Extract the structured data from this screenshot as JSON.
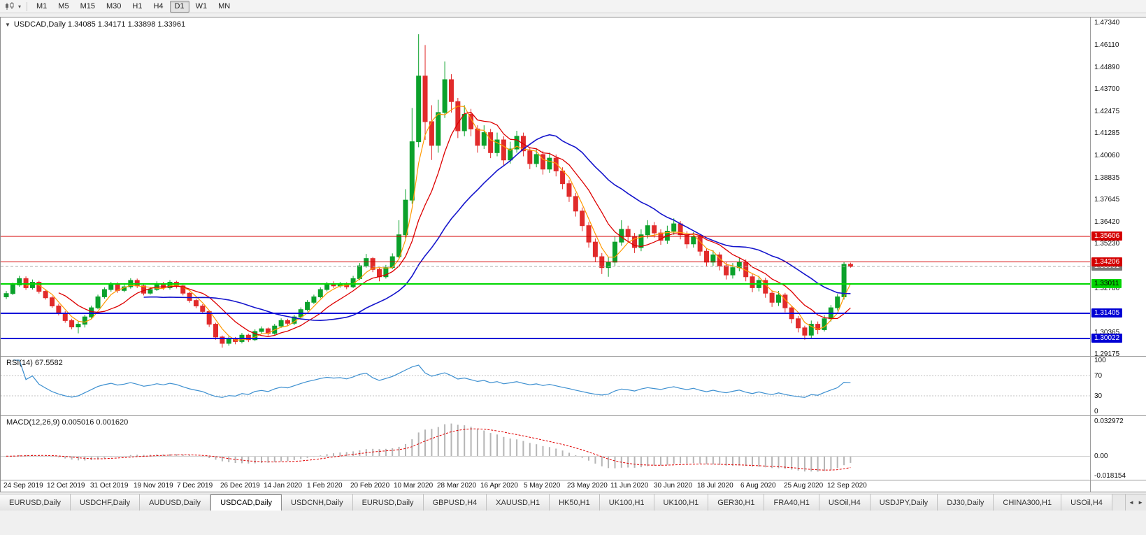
{
  "icons": {
    "collapse": "▼",
    "caret": "▾",
    "tab_scroll_left": "◄",
    "tab_scroll_right": "►"
  },
  "toolbar": {
    "timeframes": [
      "M1",
      "M5",
      "M15",
      "M30",
      "H1",
      "H4",
      "D1",
      "W1",
      "MN"
    ],
    "active_timeframe": "D1"
  },
  "chart": {
    "title": "USDCAD,Daily 1.34085 1.34171 1.33898 1.33961",
    "symbol": "USDCAD",
    "period": "Daily",
    "ohlc": {
      "open": "1.34085",
      "high": "1.34171",
      "low": "1.33898",
      "close": "1.33961"
    }
  },
  "price_axis": {
    "labels": [
      "1.47340",
      "1.46110",
      "1.44890",
      "1.43700",
      "1.42475",
      "1.41285",
      "1.40060",
      "1.38835",
      "1.37645",
      "1.36420",
      "1.35230",
      "1.32780",
      "1.30365",
      "1.29175"
    ],
    "badges": [
      {
        "text": "1.33961",
        "value": 1.33961,
        "bg": "#7a7a7a",
        "fg": "#ffffff"
      },
      {
        "text": "1.35606",
        "value": 1.35606,
        "bg": "#d40000",
        "fg": "#ffffff"
      },
      {
        "text": "1.34206",
        "value": 1.34206,
        "bg": "#d40000",
        "fg": "#ffffff"
      },
      {
        "text": "1.33011",
        "value": 1.33011,
        "bg": "#00d400",
        "fg": "#000000"
      },
      {
        "text": "1.31405",
        "value": 1.31405,
        "bg": "#0000d4",
        "fg": "#ffffff"
      },
      {
        "text": "1.30022",
        "value": 1.30022,
        "bg": "#0000d4",
        "fg": "#ffffff"
      }
    ]
  },
  "levels": [
    {
      "price": 1.35606,
      "color": "#d40000",
      "width": 1
    },
    {
      "price": 1.34206,
      "color": "#d40000",
      "width": 1
    },
    {
      "price": 1.33011,
      "color": "#00d800",
      "width": 2
    },
    {
      "price": 1.31405,
      "color": "#0000d8",
      "width": 2
    },
    {
      "price": 1.30022,
      "color": "#0000d8",
      "width": 2
    }
  ],
  "current_price": {
    "value": 1.33961,
    "line_color": "#a8a8a8"
  },
  "rsi_panel": {
    "label": "RSI(14) 67.5582",
    "current": 67.5582,
    "axis_labels": [
      {
        "text": "100",
        "value": 100
      },
      {
        "text": "70",
        "value": 70
      },
      {
        "text": "30",
        "value": 30
      },
      {
        "text": "0",
        "value": 0
      }
    ],
    "guide_levels": [
      70,
      30
    ],
    "line_color": "#3c8fd0"
  },
  "macd_panel": {
    "label": "MACD(12,26,9) 0.005016 0.001620",
    "axis_labels": [
      {
        "text": "0.032972",
        "value": 0.032972
      },
      {
        "text": "0.00",
        "value": 0
      },
      {
        "text": "-0.018154",
        "value": -0.018154
      }
    ],
    "histogram_color": "#b5b5b5",
    "signal_color": "#e00000"
  },
  "date_axis": {
    "labels": [
      "24 Sep 2019",
      "12 Oct 2019",
      "31 Oct 2019",
      "19 Nov 2019",
      "7 Dec 2019",
      "26 Dec 2019",
      "14 Jan 2020",
      "1 Feb 2020",
      "20 Feb 2020",
      "10 Mar 2020",
      "28 Mar 2020",
      "16 Apr 2020",
      "5 May 2020",
      "23 May 2020",
      "11 Jun 2020",
      "30 Jun 2020",
      "18 Jul 2020",
      "6 Aug 2020",
      "25 Aug 2020",
      "12 Sep 2020"
    ]
  },
  "tabbar": {
    "active_index": 3,
    "tabs": [
      "EURUSD,Daily",
      "USDCHF,Daily",
      "AUDUSD,Daily",
      "USDCAD,Daily",
      "USDCNH,Daily",
      "EURUSD,Daily",
      "GBPUSD,H4",
      "XAUUSD,H1",
      "HK50,H1",
      "UK100,H1",
      "UK100,H1",
      "GER30,H1",
      "FRA40,H1",
      "USOil,H4",
      "USDJPY,Daily",
      "DJ30,Daily",
      "CHINA300,H1",
      "USOil,H4"
    ]
  },
  "chart_data": {
    "type": "candlestick",
    "symbol": "USDCAD",
    "timeframe": "Daily",
    "x_range": [
      "24 Sep 2019",
      "22 Sep 2020"
    ],
    "price_range": [
      1.2906,
      1.4761
    ],
    "last_ohlc": [
      1.34085,
      1.34171,
      1.33898,
      1.33961
    ],
    "up_color": "#0ba12b",
    "down_color": "#e12b2b",
    "ma_colors": [
      "#ff9900",
      "#dd0000",
      "#1515cc"
    ],
    "indicators": {
      "rsi": {
        "period": 14,
        "current": 67.5582
      },
      "macd": {
        "fast": 12,
        "slow": 26,
        "signal": 9,
        "current": [
          0.005016,
          0.00162
        ]
      }
    },
    "candles": [
      [
        1.323,
        1.3262,
        1.3218,
        1.3248
      ],
      [
        1.3248,
        1.3308,
        1.324,
        1.3295
      ],
      [
        1.3295,
        1.3345,
        1.3285,
        1.333
      ],
      [
        1.333,
        1.3342,
        1.3268,
        1.328
      ],
      [
        1.328,
        1.3325,
        1.327,
        1.331
      ],
      [
        1.331,
        1.3318,
        1.3248,
        1.326
      ],
      [
        1.326,
        1.3272,
        1.3215,
        1.3225
      ],
      [
        1.3225,
        1.3235,
        1.317,
        1.318
      ],
      [
        1.318,
        1.3192,
        1.3128,
        1.314
      ],
      [
        1.314,
        1.3152,
        1.3088,
        1.31
      ],
      [
        1.31,
        1.311,
        1.3052,
        1.3065
      ],
      [
        1.3065,
        1.3095,
        1.303,
        1.308
      ],
      [
        1.308,
        1.3132,
        1.3062,
        1.312
      ],
      [
        1.312,
        1.3182,
        1.311,
        1.317
      ],
      [
        1.317,
        1.3242,
        1.3162,
        1.323
      ],
      [
        1.323,
        1.3282,
        1.322,
        1.327
      ],
      [
        1.327,
        1.3312,
        1.3258,
        1.33
      ],
      [
        1.33,
        1.331,
        1.3252,
        1.3265
      ],
      [
        1.3265,
        1.3298,
        1.3255,
        1.3285
      ],
      [
        1.3285,
        1.3332,
        1.3275,
        1.332
      ],
      [
        1.332,
        1.333,
        1.3278,
        1.329
      ],
      [
        1.329,
        1.3298,
        1.3238,
        1.325
      ],
      [
        1.325,
        1.3285,
        1.3242,
        1.327
      ],
      [
        1.327,
        1.3315,
        1.3262,
        1.33
      ],
      [
        1.33,
        1.3312,
        1.3268,
        1.328
      ],
      [
        1.328,
        1.3322,
        1.327,
        1.331
      ],
      [
        1.331,
        1.3318,
        1.3276,
        1.329
      ],
      [
        1.329,
        1.3296,
        1.3238,
        1.325
      ],
      [
        1.325,
        1.3258,
        1.3198,
        1.321
      ],
      [
        1.321,
        1.322,
        1.3168,
        1.318
      ],
      [
        1.318,
        1.319,
        1.3138,
        1.315
      ],
      [
        1.315,
        1.3158,
        1.3065,
        1.308
      ],
      [
        1.308,
        1.3088,
        1.2995,
        1.301
      ],
      [
        1.301,
        1.3018,
        1.2952,
        1.2975
      ],
      [
        1.2975,
        1.3015,
        1.2962,
        1.3
      ],
      [
        1.3,
        1.301,
        1.297,
        1.2985
      ],
      [
        1.2985,
        1.3032,
        1.2975,
        1.302
      ],
      [
        1.302,
        1.3028,
        1.2982,
        1.2995
      ],
      [
        1.2995,
        1.3052,
        1.2988,
        1.304
      ],
      [
        1.304,
        1.3068,
        1.3028,
        1.3055
      ],
      [
        1.3055,
        1.3062,
        1.3018,
        1.303
      ],
      [
        1.303,
        1.3082,
        1.3022,
        1.307
      ],
      [
        1.307,
        1.3112,
        1.306,
        1.31
      ],
      [
        1.31,
        1.311,
        1.3072,
        1.3085
      ],
      [
        1.3085,
        1.3132,
        1.3075,
        1.312
      ],
      [
        1.312,
        1.3172,
        1.3112,
        1.316
      ],
      [
        1.316,
        1.3212,
        1.315,
        1.32
      ],
      [
        1.32,
        1.3242,
        1.319,
        1.323
      ],
      [
        1.323,
        1.3282,
        1.3222,
        1.327
      ],
      [
        1.327,
        1.3312,
        1.326,
        1.33
      ],
      [
        1.33,
        1.3315,
        1.3278,
        1.329
      ],
      [
        1.329,
        1.3312,
        1.328,
        1.33
      ],
      [
        1.33,
        1.331,
        1.3272,
        1.3285
      ],
      [
        1.3285,
        1.3345,
        1.3278,
        1.333
      ],
      [
        1.333,
        1.3415,
        1.3322,
        1.34
      ],
      [
        1.34,
        1.3465,
        1.339,
        1.344
      ],
      [
        1.344,
        1.3448,
        1.3365,
        1.338
      ],
      [
        1.338,
        1.339,
        1.3315,
        1.334
      ],
      [
        1.334,
        1.3405,
        1.333,
        1.339
      ],
      [
        1.339,
        1.3468,
        1.3382,
        1.345
      ],
      [
        1.345,
        1.365,
        1.344,
        1.357
      ],
      [
        1.357,
        1.382,
        1.355,
        1.376
      ],
      [
        1.376,
        1.4265,
        1.374,
        1.408
      ],
      [
        1.408,
        1.4669,
        1.405,
        1.444
      ],
      [
        1.444,
        1.461,
        1.409,
        1.419
      ],
      [
        1.419,
        1.428,
        1.398,
        1.406
      ],
      [
        1.406,
        1.431,
        1.402,
        1.424
      ],
      [
        1.424,
        1.452,
        1.421,
        1.442
      ],
      [
        1.442,
        1.445,
        1.424,
        1.43
      ],
      [
        1.43,
        1.432,
        1.41,
        1.414
      ],
      [
        1.414,
        1.428,
        1.411,
        1.423
      ],
      [
        1.423,
        1.426,
        1.411,
        1.415
      ],
      [
        1.415,
        1.417,
        1.402,
        1.406
      ],
      [
        1.406,
        1.417,
        1.404,
        1.413
      ],
      [
        1.413,
        1.415,
        1.399,
        1.402
      ],
      [
        1.402,
        1.413,
        1.4,
        1.409
      ],
      [
        1.409,
        1.411,
        1.395,
        1.398
      ],
      [
        1.398,
        1.408,
        1.396,
        1.404
      ],
      [
        1.404,
        1.414,
        1.402,
        1.411
      ],
      [
        1.411,
        1.413,
        1.4,
        1.403
      ],
      [
        1.403,
        1.405,
        1.393,
        1.396
      ],
      [
        1.396,
        1.404,
        1.394,
        1.401
      ],
      [
        1.401,
        1.403,
        1.39,
        1.393
      ],
      [
        1.393,
        1.402,
        1.391,
        1.399
      ],
      [
        1.399,
        1.401,
        1.389,
        1.392
      ],
      [
        1.392,
        1.394,
        1.382,
        1.385
      ],
      [
        1.385,
        1.387,
        1.375,
        1.378
      ],
      [
        1.378,
        1.38,
        1.367,
        1.37
      ],
      [
        1.37,
        1.372,
        1.359,
        1.362
      ],
      [
        1.362,
        1.364,
        1.35,
        1.353
      ],
      [
        1.353,
        1.355,
        1.342,
        1.345
      ],
      [
        1.345,
        1.347,
        1.3355,
        1.339
      ],
      [
        1.339,
        1.345,
        1.334,
        1.342
      ],
      [
        1.342,
        1.356,
        1.34,
        1.353
      ],
      [
        1.353,
        1.365,
        1.351,
        1.36
      ],
      [
        1.36,
        1.362,
        1.353,
        1.356
      ],
      [
        1.356,
        1.358,
        1.347,
        1.35
      ],
      [
        1.35,
        1.36,
        1.348,
        1.357
      ],
      [
        1.357,
        1.365,
        1.355,
        1.362
      ],
      [
        1.362,
        1.364,
        1.3555,
        1.358
      ],
      [
        1.358,
        1.36,
        1.3515,
        1.354
      ],
      [
        1.354,
        1.362,
        1.352,
        1.359
      ],
      [
        1.359,
        1.366,
        1.357,
        1.363
      ],
      [
        1.363,
        1.3645,
        1.3545,
        1.357
      ],
      [
        1.357,
        1.359,
        1.3495,
        1.352
      ],
      [
        1.352,
        1.3585,
        1.35,
        1.356
      ],
      [
        1.356,
        1.3575,
        1.3455,
        1.348
      ],
      [
        1.348,
        1.3495,
        1.3395,
        1.342
      ],
      [
        1.342,
        1.3485,
        1.34,
        1.346
      ],
      [
        1.346,
        1.3475,
        1.3375,
        1.34
      ],
      [
        1.34,
        1.342,
        1.3325,
        1.335
      ],
      [
        1.335,
        1.3415,
        1.333,
        1.339
      ],
      [
        1.339,
        1.3445,
        1.337,
        1.342
      ],
      [
        1.342,
        1.3435,
        1.3315,
        1.334
      ],
      [
        1.334,
        1.3355,
        1.3255,
        1.328
      ],
      [
        1.328,
        1.3345,
        1.326,
        1.332
      ],
      [
        1.332,
        1.3335,
        1.3225,
        1.325
      ],
      [
        1.325,
        1.3265,
        1.3175,
        1.32
      ],
      [
        1.32,
        1.3262,
        1.318,
        1.324
      ],
      [
        1.324,
        1.3252,
        1.3145,
        1.317
      ],
      [
        1.317,
        1.3182,
        1.3085,
        1.311
      ],
      [
        1.311,
        1.3125,
        1.3035,
        1.306
      ],
      [
        1.306,
        1.3072,
        1.2995,
        1.302
      ],
      [
        1.302,
        1.31,
        1.3005,
        1.308
      ],
      [
        1.308,
        1.3095,
        1.3025,
        1.305
      ],
      [
        1.305,
        1.313,
        1.304,
        1.311
      ],
      [
        1.311,
        1.3185,
        1.3095,
        1.317
      ],
      [
        1.317,
        1.3245,
        1.3155,
        1.323
      ],
      [
        1.323,
        1.342,
        1.3215,
        1.3408
      ],
      [
        1.34085,
        1.34171,
        1.33898,
        1.33961
      ]
    ]
  }
}
